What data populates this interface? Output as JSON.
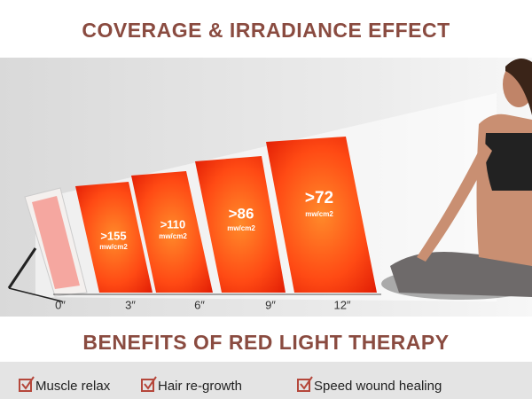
{
  "header": {
    "title": "COVERAGE & IRRADIANCE EFFECT"
  },
  "panels": [
    {
      "value": ">155",
      "unit": "mw/cm2"
    },
    {
      "value": ">110",
      "unit": "mw/cm2"
    },
    {
      "value": ">86",
      "unit": "mw/cm2"
    },
    {
      "value": ">72",
      "unit": "mw/cm2"
    }
  ],
  "distances": [
    "0″",
    "3″",
    "6″",
    "9″",
    "12″"
  ],
  "benefits": {
    "title": "BENEFITS OF RED LIGHT THERAPY",
    "items": [
      "Muscle relax",
      "Hair re-growth",
      "Speed wound healing"
    ]
  }
}
